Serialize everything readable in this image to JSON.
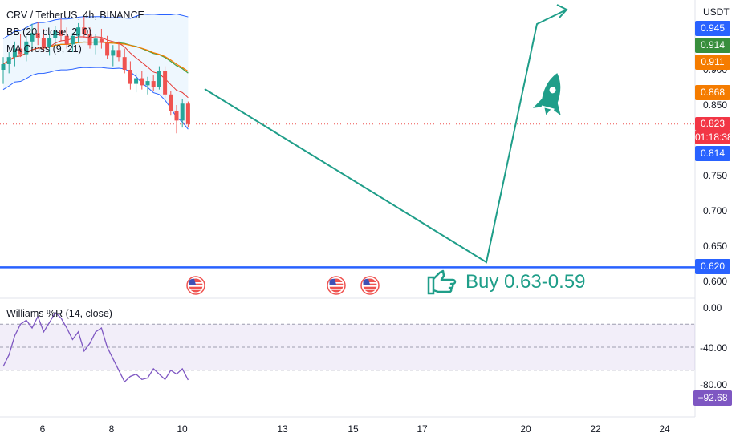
{
  "header": {
    "symbol_line": "CRV / TetherUS, 4h, BINANCE",
    "bb_line": "BB (20, close, 2, 0)",
    "ma_line": "MA Cross (9, 21)"
  },
  "axis": {
    "currency": "USDT",
    "price_ticks": [
      "0.900",
      "0.850",
      "0.750",
      "0.700",
      "0.650",
      "0.600"
    ],
    "price_tags": [
      {
        "text": "0.945",
        "color": "#2962ff"
      },
      {
        "text": "0.914",
        "color": "#388e3c"
      },
      {
        "text": "0.911",
        "color": "#f57c00"
      },
      {
        "text": "0.868",
        "color": "#f57c00"
      },
      {
        "text": "0.823",
        "color": "#f23645"
      },
      {
        "text": "01:18:38",
        "color": "#f23645"
      },
      {
        "text": "0.814",
        "color": "#2962ff"
      },
      {
        "text": "0.620",
        "color": "#2962ff"
      }
    ],
    "wr_ticks": [
      "0.00",
      "-40.00",
      "-80.00"
    ],
    "wr_tag": {
      "text": "−92.68",
      "color": "#7e57c2"
    },
    "x_ticks": [
      "6",
      "8",
      "10",
      "13",
      "15",
      "17",
      "20",
      "22",
      "24"
    ]
  },
  "annotations": {
    "buy_text": "Buy 0.63-0.59",
    "rocket_icon": "rocket-icon",
    "hand_icon": "pointing-hand-icon",
    "flag_icon": "us-flag-icon"
  },
  "indicator": {
    "title": "Williams %R (14, close)"
  },
  "chart_data": {
    "type": "candlestick",
    "symbol": "CRV / TetherUS",
    "interval": "4h",
    "exchange": "BINANCE",
    "support_level": 0.62,
    "last_price": 0.823,
    "projection_path": [
      {
        "x": "10.6",
        "y": 0.87
      },
      {
        "x": "18.7",
        "y": 0.625
      },
      {
        "x": "19.9",
        "y": 0.975
      },
      {
        "x": "21.2",
        "y": 0.99
      }
    ],
    "candles": [
      {
        "o": 0.9,
        "h": 0.918,
        "l": 0.88,
        "c": 0.908
      },
      {
        "o": 0.908,
        "h": 0.925,
        "l": 0.895,
        "c": 0.918
      },
      {
        "o": 0.918,
        "h": 0.94,
        "l": 0.905,
        "c": 0.93
      },
      {
        "o": 0.93,
        "h": 0.95,
        "l": 0.918,
        "c": 0.922
      },
      {
        "o": 0.922,
        "h": 0.948,
        "l": 0.912,
        "c": 0.94
      },
      {
        "o": 0.94,
        "h": 0.965,
        "l": 0.928,
        "c": 0.952
      },
      {
        "o": 0.952,
        "h": 0.968,
        "l": 0.935,
        "c": 0.945
      },
      {
        "o": 0.945,
        "h": 0.958,
        "l": 0.925,
        "c": 0.932
      },
      {
        "o": 0.932,
        "h": 0.95,
        "l": 0.92,
        "c": 0.945
      },
      {
        "o": 0.945,
        "h": 0.962,
        "l": 0.935,
        "c": 0.955
      },
      {
        "o": 0.955,
        "h": 0.972,
        "l": 0.94,
        "c": 0.948
      },
      {
        "o": 0.948,
        "h": 0.96,
        "l": 0.93,
        "c": 0.936
      },
      {
        "o": 0.936,
        "h": 0.952,
        "l": 0.925,
        "c": 0.948
      },
      {
        "o": 0.948,
        "h": 0.966,
        "l": 0.938,
        "c": 0.96
      },
      {
        "o": 0.96,
        "h": 0.975,
        "l": 0.945,
        "c": 0.95
      },
      {
        "o": 0.95,
        "h": 0.96,
        "l": 0.93,
        "c": 0.935
      },
      {
        "o": 0.935,
        "h": 0.95,
        "l": 0.922,
        "c": 0.944
      },
      {
        "o": 0.944,
        "h": 0.958,
        "l": 0.93,
        "c": 0.938
      },
      {
        "o": 0.938,
        "h": 0.948,
        "l": 0.915,
        "c": 0.92
      },
      {
        "o": 0.92,
        "h": 0.935,
        "l": 0.905,
        "c": 0.928
      },
      {
        "o": 0.928,
        "h": 0.94,
        "l": 0.912,
        "c": 0.918
      },
      {
        "o": 0.918,
        "h": 0.93,
        "l": 0.895,
        "c": 0.9
      },
      {
        "o": 0.9,
        "h": 0.912,
        "l": 0.872,
        "c": 0.88
      },
      {
        "o": 0.88,
        "h": 0.895,
        "l": 0.868,
        "c": 0.888
      },
      {
        "o": 0.888,
        "h": 0.898,
        "l": 0.872,
        "c": 0.878
      },
      {
        "o": 0.878,
        "h": 0.89,
        "l": 0.865,
        "c": 0.884
      },
      {
        "o": 0.884,
        "h": 0.892,
        "l": 0.87,
        "c": 0.875
      },
      {
        "o": 0.875,
        "h": 0.905,
        "l": 0.872,
        "c": 0.898
      },
      {
        "o": 0.898,
        "h": 0.905,
        "l": 0.86,
        "c": 0.865
      },
      {
        "o": 0.865,
        "h": 0.87,
        "l": 0.835,
        "c": 0.842
      },
      {
        "o": 0.842,
        "h": 0.85,
        "l": 0.81,
        "c": 0.828
      },
      {
        "o": 0.828,
        "h": 0.858,
        "l": 0.818,
        "c": 0.852
      },
      {
        "o": 0.852,
        "h": 0.855,
        "l": 0.818,
        "c": 0.823
      }
    ],
    "williams_r": [
      -75,
      -60,
      -35,
      -20,
      -15,
      -25,
      -10,
      -30,
      -18,
      -5,
      -12,
      -25,
      -40,
      -30,
      -55,
      -45,
      -30,
      -25,
      -50,
      -65,
      -80,
      -95,
      -88,
      -85,
      -92,
      -90,
      -78,
      -85,
      -92,
      -80,
      -85,
      -78,
      -92.68
    ],
    "wr_range": [
      -100,
      0
    ],
    "wr_levels": [
      -20,
      -50,
      -80
    ]
  }
}
